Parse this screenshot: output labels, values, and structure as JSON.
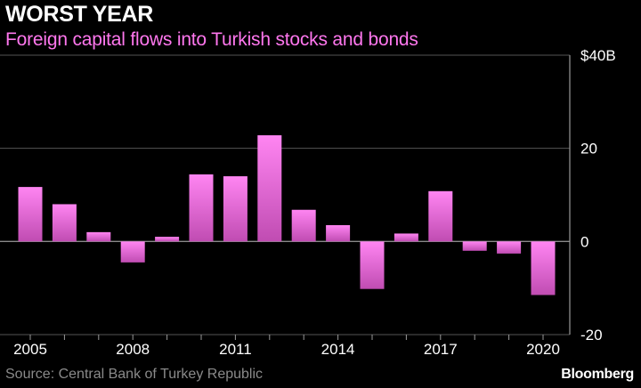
{
  "header": {
    "title": "WORST YEAR",
    "subtitle": "Foreign capital flows into Turkish stocks and bonds"
  },
  "footer": {
    "source": "Source: Central Bank of Turkey Republic",
    "brand": "Bloomberg"
  },
  "colors": {
    "background": "#000000",
    "accent": "#ff77ee",
    "bar_top": "#ff85f2",
    "bar_bottom": "#c04cb2",
    "grid": "#555555"
  },
  "chart_data": {
    "type": "bar",
    "title": "Foreign capital flows into Turkish stocks and bonds",
    "xlabel": "",
    "ylabel": "",
    "categories": [
      "2005",
      "2006",
      "2007",
      "2008",
      "2009",
      "2010",
      "2011",
      "2012",
      "2013",
      "2014",
      "2015",
      "2016",
      "2017",
      "2018",
      "2019",
      "2020"
    ],
    "values": [
      11.7,
      8.0,
      2.0,
      -4.5,
      1.0,
      14.4,
      14.0,
      22.8,
      6.8,
      3.5,
      -10.2,
      1.7,
      10.8,
      -2.0,
      -2.6,
      -11.5
    ],
    "ylim": [
      -20,
      40
    ],
    "yticks": [
      40,
      20,
      0,
      -20
    ],
    "ytick_labels": [
      "$40B",
      "20",
      "0",
      "-20"
    ],
    "xtick_labels": [
      "2005",
      "2008",
      "2011",
      "2014",
      "2017",
      "2020"
    ],
    "grid": true,
    "y_axis_side": "right"
  }
}
